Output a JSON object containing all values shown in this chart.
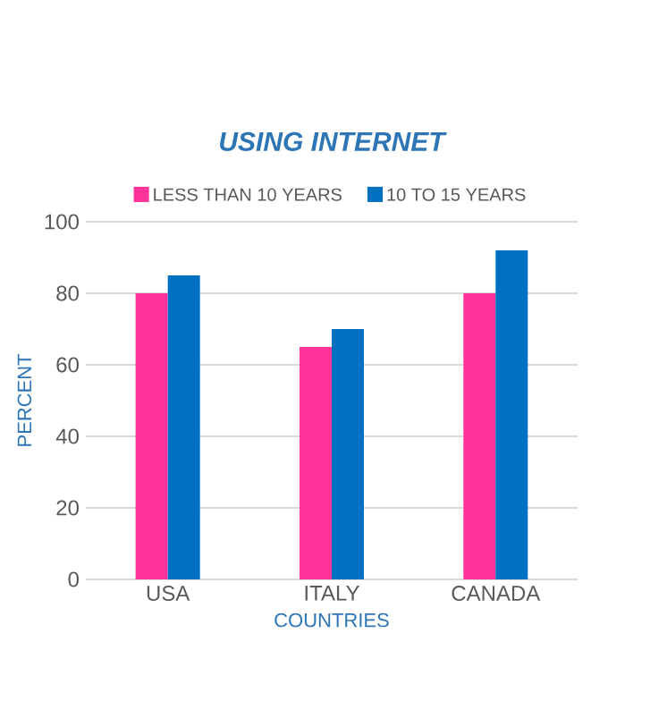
{
  "chart_data": {
    "type": "bar",
    "title": "USING INTERNET",
    "xlabel": "COUNTRIES",
    "ylabel": "PERCENT",
    "categories": [
      "USA",
      "ITALY",
      "CANADA"
    ],
    "series": [
      {
        "name": "LESS THAN 10 YEARS",
        "color": "#ff3399",
        "values": [
          80,
          65,
          80
        ]
      },
      {
        "name": "10 TO 15 YEARS",
        "color": "#0070c0",
        "values": [
          85,
          70,
          92
        ]
      }
    ],
    "ylim": [
      0,
      100
    ],
    "yticks": [
      0,
      20,
      40,
      60,
      80,
      100
    ],
    "grid": "y",
    "legend": "top"
  }
}
